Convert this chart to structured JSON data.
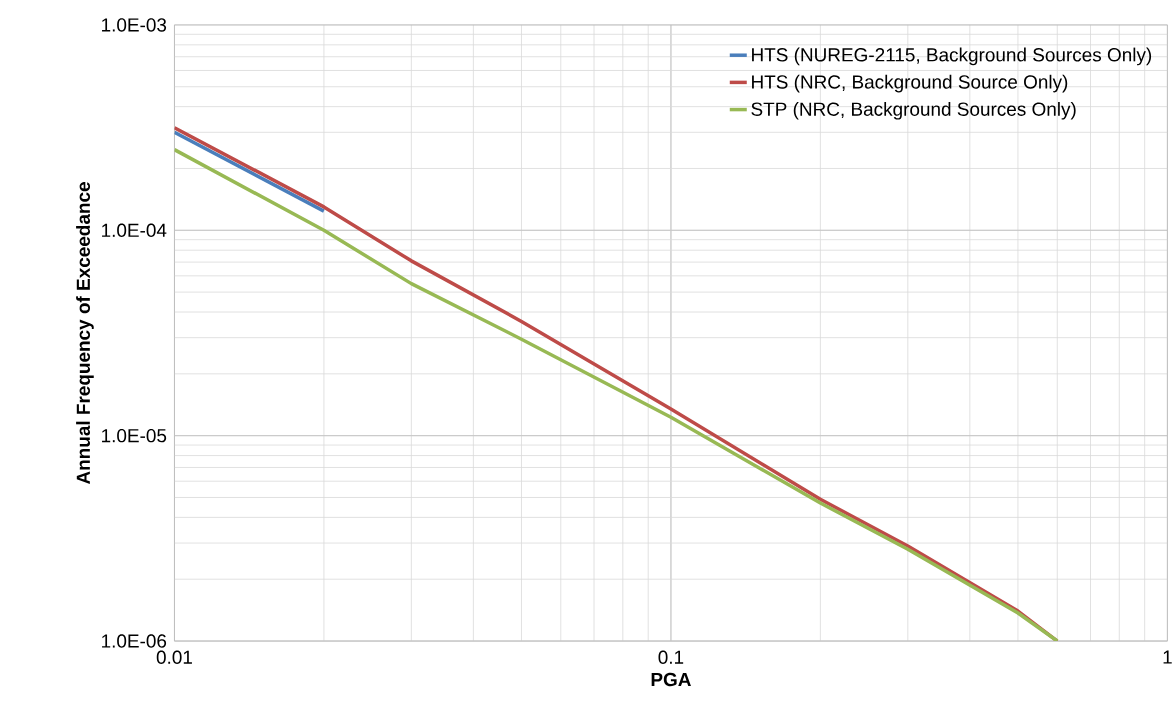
{
  "chart_data": {
    "type": "line",
    "xlabel": "PGA",
    "ylabel": "Annual Frequency of Exceedance",
    "log": "xy",
    "grid": true,
    "legend": "top right",
    "xlim": [
      0.01,
      1
    ],
    "ylim": [
      1e-06,
      0.001
    ],
    "xticks": [
      0.01,
      0.1,
      1
    ],
    "yticks": [
      {
        "value": 1e-06,
        "label": "1.0E-06"
      },
      {
        "value": 1e-05,
        "label": "1.0E-05"
      },
      {
        "value": 0.0001,
        "label": "1.0E-04"
      },
      {
        "value": 0.001,
        "label": "1.0E-03"
      }
    ],
    "x": [
      0.01,
      0.02,
      0.03,
      0.05,
      0.1,
      0.2,
      0.3,
      0.5,
      0.6
    ],
    "series": [
      {
        "name": "HTS (NUREG-2115, Background Sources Only)",
        "color": "#4a7ebb",
        "values": [
          0.0003,
          0.000124,
          null,
          null,
          null,
          null,
          null,
          null,
          null
        ]
      },
      {
        "name": "HTS (NRC, Background Source Only)",
        "color": "#be4b48",
        "values": [
          0.000316,
          0.00013,
          7.1e-05,
          3.6e-05,
          1.35e-05,
          4.9e-06,
          2.9e-06,
          1.4e-06,
          1e-06
        ]
      },
      {
        "name": "STP (NRC, Background Sources Only)",
        "color": "#98b954",
        "values": [
          0.000247,
          0.0001,
          5.5e-05,
          2.95e-05,
          1.23e-05,
          4.7e-06,
          2.8e-06,
          1.37e-06,
          1e-06
        ]
      }
    ]
  }
}
